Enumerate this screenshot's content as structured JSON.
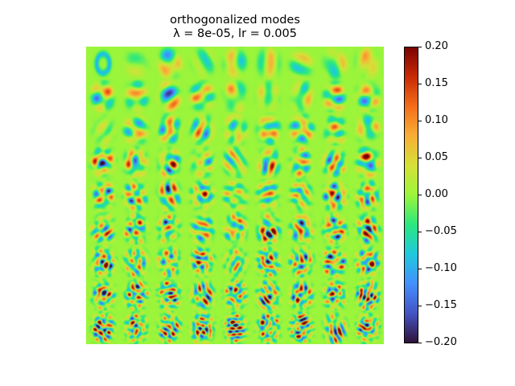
{
  "chart_data": {
    "type": "heatmap",
    "title": "orthogonalized modes",
    "subtitle": "λ = 8e-05, lr = 0.005",
    "xlabel": "",
    "ylabel": "",
    "grid": false,
    "layout": {
      "rows": 9,
      "cols": 9,
      "description": "9x9 grid of 2D mode images (digit-like shapes, increasing spatial frequency by row)"
    },
    "colormap": "turbo",
    "colorbar": {
      "vmin": -0.2,
      "vmax": 0.2,
      "ticks": [
        0.2,
        0.15,
        0.1,
        0.05,
        0.0,
        -0.05,
        -0.1,
        -0.15,
        -0.2
      ],
      "tick_labels": [
        "0.20",
        "0.15",
        "0.10",
        "0.05",
        "0.00",
        "−0.05",
        "−0.10",
        "−0.15",
        "−0.20"
      ],
      "position": "right"
    },
    "background_value": 0.0
  },
  "colors": {
    "background": "#9bf53a",
    "cmap_stops": [
      "#30123b",
      "#4454c4",
      "#4490fe",
      "#1fc9dd",
      "#2ae87e",
      "#9bf53a",
      "#d5e038",
      "#f9ae36",
      "#f36e1b",
      "#c92a04",
      "#7a0403"
    ]
  }
}
